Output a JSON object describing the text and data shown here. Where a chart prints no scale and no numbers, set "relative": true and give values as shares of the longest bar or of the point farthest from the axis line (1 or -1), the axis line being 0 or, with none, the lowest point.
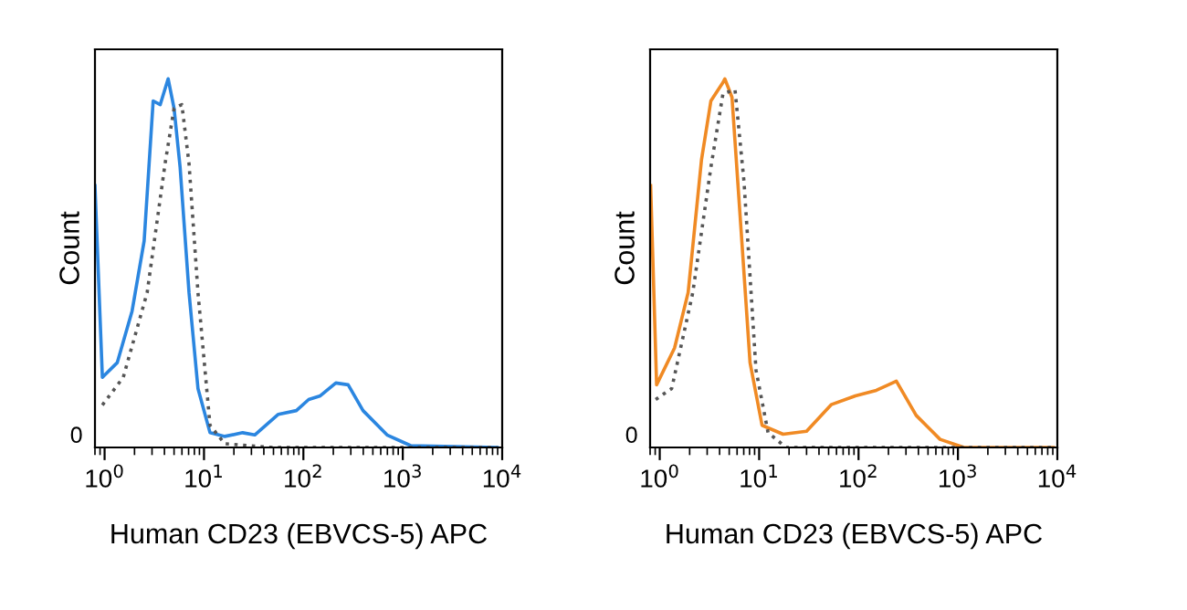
{
  "chart_data": [
    {
      "type": "line",
      "relative": true,
      "xlabel": "Human CD23 (EBVCS-5) APC",
      "ylabel": "Count",
      "log": "x",
      "xlim": [
        0.8,
        10000
      ],
      "xticks": [
        {
          "value": 1,
          "label": "10$^{0}$"
        },
        {
          "value": 10,
          "label": "10$^{1}$"
        },
        {
          "value": 100,
          "label": "10$^{2}$"
        },
        {
          "value": 1000,
          "label": "10$^{3}$"
        },
        {
          "value": 10000,
          "label": "10$^{4}$"
        }
      ],
      "annotations": [
        "0"
      ],
      "series": [
        {
          "color": "#2b86e0",
          "line_style": "solid",
          "x": [
            0.8,
            0.95,
            1.34,
            1.89,
            2.5,
            3.08,
            3.63,
            4.36,
            5.0,
            5.75,
            7.07,
            8.7,
            11.5,
            16.2,
            24.5,
            32.4,
            56,
            85,
            113,
            148,
            212,
            282,
            398,
            695,
            1200,
            8900
          ],
          "values": [
            0.71,
            0.19,
            0.23,
            0.37,
            0.56,
            0.94,
            0.93,
            1.0,
            0.92,
            0.76,
            0.42,
            0.16,
            0.04,
            0.03,
            0.04,
            0.034,
            0.09,
            0.1,
            0.13,
            0.14,
            0.175,
            0.17,
            0.1,
            0.034,
            0.005,
            0
          ]
        },
        {
          "color": "#555555",
          "line_style": "dotted",
          "x": [
            0.95,
            1.54,
            2.68,
            4.06,
            5.0,
            5.99,
            7.07,
            8.7,
            11.5,
            16.2,
            49,
            8900
          ],
          "values": [
            0.115,
            0.19,
            0.42,
            0.77,
            0.92,
            0.93,
            0.77,
            0.42,
            0.06,
            0.01,
            0,
            0
          ]
        }
      ]
    },
    {
      "type": "line",
      "relative": true,
      "xlabel": "Human CD23 (EBVCS-5) APC",
      "ylabel": "Count",
      "log": "x",
      "xlim": [
        0.8,
        10000
      ],
      "xticks": [
        {
          "value": 1,
          "label": "10$^{0}$"
        },
        {
          "value": 10,
          "label": "10$^{1}$"
        },
        {
          "value": 100,
          "label": "10$^{2}$"
        },
        {
          "value": 1000,
          "label": "10$^{3}$"
        },
        {
          "value": 10000,
          "label": "10$^{4}$"
        }
      ],
      "annotations": [
        "0"
      ],
      "series": [
        {
          "color": "#f08a24",
          "line_style": "solid",
          "x": [
            0.81,
            0.93,
            1.41,
            1.93,
            2.63,
            3.27,
            4.33,
            4.52,
            5.33,
            6.58,
            8.1,
            10.7,
            17.4,
            30,
            53,
            93,
            151,
            200,
            240,
            380,
            661,
            1150,
            9100
          ],
          "values": [
            0.71,
            0.17,
            0.27,
            0.42,
            0.78,
            0.94,
            0.99,
            1.0,
            0.95,
            0.59,
            0.23,
            0.06,
            0.036,
            0.044,
            0.116,
            0.14,
            0.155,
            0.17,
            0.18,
            0.087,
            0.022,
            0,
            0
          ]
        },
        {
          "color": "#555555",
          "line_style": "dotted",
          "x": [
            0.91,
            1.32,
            2.15,
            3.27,
            4.33,
            5.72,
            7.05,
            9.3,
            12.3,
            18.7,
            9100
          ],
          "values": [
            0.13,
            0.16,
            0.42,
            0.76,
            0.96,
            0.97,
            0.72,
            0.21,
            0.04,
            0,
            0
          ]
        }
      ]
    }
  ]
}
